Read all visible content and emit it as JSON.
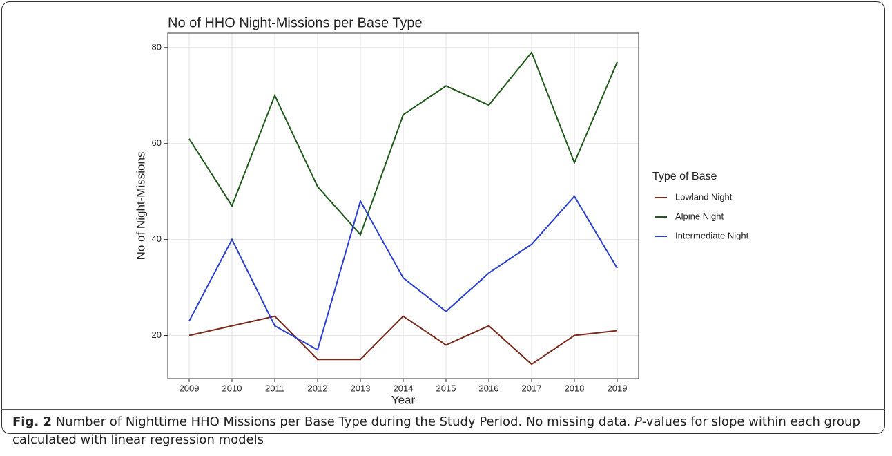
{
  "chart_data": {
    "type": "line",
    "title": "No of HHO Night-Missions per Base Type",
    "x_label": "Year",
    "y_label": "No of Night-Missions",
    "legend_title": "Type of Base",
    "legend_position": "right",
    "grid": true,
    "x": [
      2009,
      2010,
      2011,
      2012,
      2013,
      2014,
      2015,
      2016,
      2017,
      2018,
      2019
    ],
    "xlim": [
      2008.5,
      2019.5
    ],
    "xticks": [
      2009,
      2010,
      2011,
      2012,
      2013,
      2014,
      2015,
      2016,
      2017,
      2018,
      2019
    ],
    "ylim": [
      11,
      83
    ],
    "yticks": [
      20,
      40,
      60,
      80
    ],
    "series": [
      {
        "name": "Lowland Night",
        "color": "#7b2a1c",
        "values": [
          20,
          22,
          24,
          15,
          15,
          24,
          18,
          22,
          14,
          20,
          21
        ]
      },
      {
        "name": "Alpine Night",
        "color": "#1f5a1a",
        "values": [
          61,
          47,
          70,
          51,
          41,
          66,
          72,
          68,
          79,
          56,
          77
        ]
      },
      {
        "name": "Intermediate Night",
        "color": "#2a3fcf",
        "values": [
          23,
          40,
          22,
          17,
          48,
          32,
          25,
          33,
          39,
          49,
          34
        ]
      }
    ],
    "caption": {
      "label": "Fig. 2",
      "text_before": "Number of Nighttime HHO Missions per Base Type during the Study Period. No missing data. ",
      "italic": "P",
      "text_after": "-values for slope within each group calculated with linear regression models"
    }
  }
}
